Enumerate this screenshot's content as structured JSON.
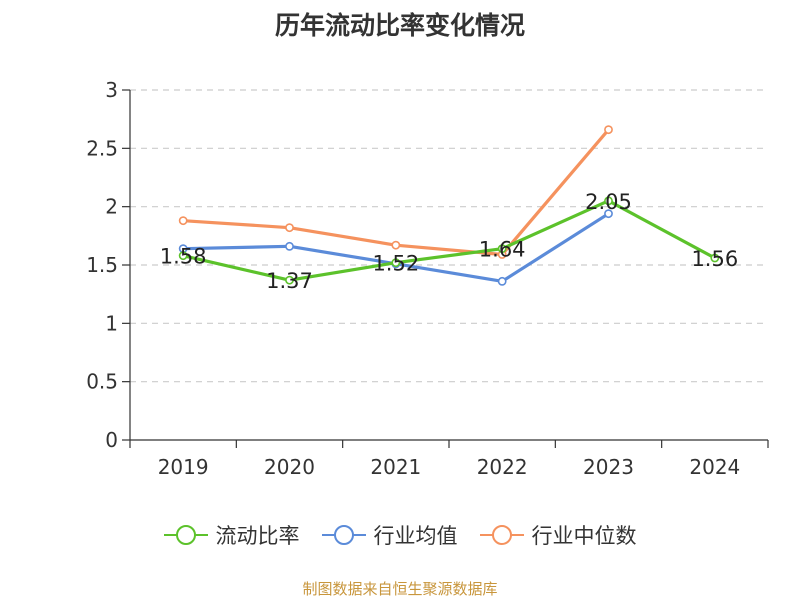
{
  "chart_data": {
    "type": "line",
    "title": "历年流动比率变化情况",
    "categories": [
      "2019",
      "2020",
      "2021",
      "2022",
      "2023",
      "2024"
    ],
    "ylim": [
      0,
      3
    ],
    "yticks": [
      "0",
      "0.5",
      "1",
      "1.5",
      "2",
      "2.5",
      "3"
    ],
    "grid": true,
    "legend_position": "bottom",
    "series": [
      {
        "name": "流动比率",
        "color": "#5cc22b",
        "values": [
          1.58,
          1.37,
          1.52,
          1.64,
          2.05,
          1.56
        ],
        "labels": [
          "1.58",
          "1.37",
          "1.52",
          "1.64",
          "2.05",
          "1.56"
        ]
      },
      {
        "name": "行业均值",
        "color": "#5b8bd9",
        "values": [
          1.64,
          1.66,
          1.51,
          1.36,
          1.94,
          null
        ]
      },
      {
        "name": "行业中位数",
        "color": "#f5925e",
        "values": [
          1.88,
          1.82,
          1.67,
          1.59,
          2.66,
          null
        ]
      }
    ]
  },
  "source": "制图数据来自恒生聚源数据库"
}
